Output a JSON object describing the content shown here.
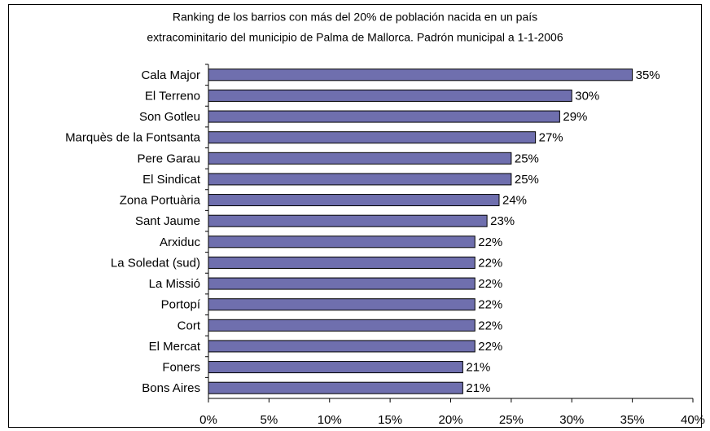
{
  "chart_data": {
    "type": "bar",
    "orientation": "horizontal",
    "title": [
      "Ranking de los barrios con más del 20% de población nacida en un país",
      "extracominitario del municipio de Palma de Mallorca. Padrón municipal a 1-1-2006"
    ],
    "categories": [
      "Cala Major",
      "El Terreno",
      "Son Gotleu",
      "Marquès de la Fontsanta",
      "Pere Garau",
      "El Sindicat",
      "Zona Portuària",
      "Sant Jaume",
      "Arxiduc",
      "La Soledat (sud)",
      "La Missió",
      "Portopí",
      "Cort",
      "El Mercat",
      "Foners",
      "Bons Aires"
    ],
    "values": [
      35,
      30,
      29,
      27,
      25,
      25,
      24,
      23,
      22,
      22,
      22,
      22,
      22,
      22,
      21,
      21
    ],
    "value_labels": [
      "35%",
      "30%",
      "29%",
      "27%",
      "25%",
      "25%",
      "24%",
      "23%",
      "22%",
      "22%",
      "22%",
      "22%",
      "22%",
      "22%",
      "21%",
      "21%"
    ],
    "color": "#6f6fae",
    "xlim": [
      0,
      40
    ],
    "xticks": [
      {
        "value": 0,
        "label": "0%"
      },
      {
        "value": 5,
        "label": "5%"
      },
      {
        "value": 10,
        "label": "10%"
      },
      {
        "value": 15,
        "label": "15%"
      },
      {
        "value": 20,
        "label": "20%"
      },
      {
        "value": 25,
        "label": "25%"
      },
      {
        "value": 30,
        "label": "30%"
      },
      {
        "value": 35,
        "label": "35%"
      },
      {
        "value": 40,
        "label": "40%"
      }
    ],
    "grid": false
  }
}
